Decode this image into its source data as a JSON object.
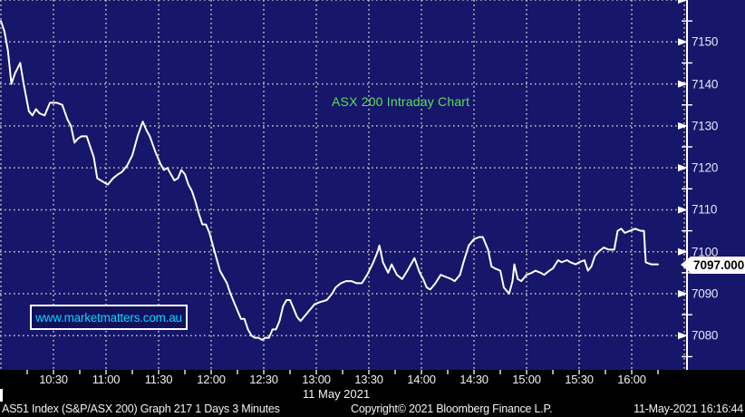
{
  "title": {
    "text": "ASX 200 Intraday Chart",
    "color": "#5ae05a"
  },
  "watermark": {
    "text": "www.marketmatters.com.au",
    "color": "#00d9ff"
  },
  "price_callout": {
    "value": "7097.000"
  },
  "date_label": "11 May 2021",
  "footer": {
    "left": "AS51 Index (S&P/ASX 200) Graph 217 1 Days 3 Minutes",
    "center": "Copyright© 2021 Bloomberg Finance L.P.",
    "right": "11-May-2021 16:16:44"
  },
  "colors": {
    "background": "#16166a",
    "axis_band": "#000000",
    "gridline": "#c8c8be",
    "line": "#ffffff",
    "title_green": "#5ae05a",
    "watermark_cyan": "#00d9ff"
  },
  "chart_data": {
    "type": "line",
    "title": "ASX 200 Intraday Chart",
    "instrument": "AS51 Index (S&P/ASX 200)",
    "interval": "3 Minutes",
    "x_unit": "minutes since 10:00",
    "ylim_visible": [
      7072,
      7160
    ],
    "grid": "dotted",
    "y_axis_side": "right",
    "last_value": 7097.0,
    "day_high": 7155.0,
    "day_low": 7079.0,
    "y_tick_labels": [
      7150,
      7140,
      7130,
      7120,
      7110,
      7100,
      7090,
      7080
    ],
    "y_major_gridlines": [
      7160,
      7150,
      7140,
      7130,
      7120,
      7110,
      7100,
      7090,
      7080
    ],
    "y_minor_ticks": [
      7155,
      7145,
      7135,
      7125,
      7115,
      7105,
      7095,
      7085,
      7075
    ],
    "x_gridline_minutes": [
      0,
      30,
      60,
      90,
      120,
      150,
      180,
      210,
      240,
      270,
      300,
      330,
      360,
      390
    ],
    "x_tick_minutes": [
      15,
      30,
      45,
      60,
      75,
      90,
      105,
      120,
      135,
      150,
      165,
      180,
      195,
      210,
      225,
      240,
      255,
      270,
      285,
      300,
      315,
      330,
      345,
      360,
      375
    ],
    "x_labels": [
      {
        "text": "10:30",
        "minute": 30
      },
      {
        "text": "11:00",
        "minute": 60
      },
      {
        "text": "11:30",
        "minute": 90
      },
      {
        "text": "12:00",
        "minute": 120
      },
      {
        "text": "12:30",
        "minute": 150
      },
      {
        "text": "13:00",
        "minute": 180
      },
      {
        "text": "13:30",
        "minute": 210
      },
      {
        "text": "14:00",
        "minute": 240
      },
      {
        "text": "14:30",
        "minute": 270
      },
      {
        "text": "15:00",
        "minute": 300
      },
      {
        "text": "15:30",
        "minute": 330
      },
      {
        "text": "16:00",
        "minute": 360
      }
    ],
    "series": [
      {
        "name": "AS51 Index intraday price",
        "points": [
          [
            0,
            7155
          ],
          [
            2,
            7152.5
          ],
          [
            4,
            7148
          ],
          [
            6,
            7140
          ],
          [
            8,
            7142.5
          ],
          [
            11,
            7145
          ],
          [
            13,
            7140
          ],
          [
            16,
            7133.5
          ],
          [
            18,
            7132.5
          ],
          [
            20,
            7134
          ],
          [
            22,
            7133
          ],
          [
            25,
            7132.5
          ],
          [
            28,
            7135.5
          ],
          [
            32,
            7135.5
          ],
          [
            35,
            7135
          ],
          [
            38,
            7131.5
          ],
          [
            40,
            7130
          ],
          [
            42,
            7126
          ],
          [
            44,
            7127
          ],
          [
            46,
            7127.5
          ],
          [
            49,
            7127.5
          ],
          [
            51,
            7125
          ],
          [
            53,
            7122.5
          ],
          [
            55,
            7117.5
          ],
          [
            57,
            7117
          ],
          [
            59,
            7116.5
          ],
          [
            61,
            7116
          ],
          [
            64,
            7117.5
          ],
          [
            67,
            7118.5
          ],
          [
            69,
            7119
          ],
          [
            72,
            7120.5
          ],
          [
            75,
            7123
          ],
          [
            78,
            7127.5
          ],
          [
            80,
            7130
          ],
          [
            81,
            7131
          ],
          [
            83,
            7129
          ],
          [
            85,
            7127.5
          ],
          [
            88,
            7124
          ],
          [
            91,
            7121
          ],
          [
            93,
            7119.5
          ],
          [
            95,
            7120
          ],
          [
            97,
            7118.5
          ],
          [
            99,
            7117
          ],
          [
            101,
            7117.5
          ],
          [
            103,
            7119.5
          ],
          [
            105,
            7118.5
          ],
          [
            107,
            7116
          ],
          [
            109,
            7114.5
          ],
          [
            111,
            7112
          ],
          [
            113,
            7109
          ],
          [
            115,
            7106.5
          ],
          [
            117,
            7106.5
          ],
          [
            119,
            7104.5
          ],
          [
            121,
            7101.5
          ],
          [
            123,
            7098.5
          ],
          [
            125,
            7095.5
          ],
          [
            127,
            7094
          ],
          [
            129,
            7092.5
          ],
          [
            131,
            7090
          ],
          [
            133,
            7088
          ],
          [
            135,
            7086
          ],
          [
            137,
            7084
          ],
          [
            139,
            7084
          ],
          [
            141,
            7081.5
          ],
          [
            143,
            7080
          ],
          [
            145,
            7079.5
          ],
          [
            147,
            7079.5
          ],
          [
            149,
            7079
          ],
          [
            151,
            7079.5
          ],
          [
            153,
            7079.5
          ],
          [
            155,
            7081.5
          ],
          [
            157,
            7081.5
          ],
          [
            159,
            7083.5
          ],
          [
            161,
            7087
          ],
          [
            163,
            7088.5
          ],
          [
            165,
            7088.5
          ],
          [
            167,
            7086.5
          ],
          [
            169,
            7084.5
          ],
          [
            171,
            7083.5
          ],
          [
            173,
            7084.5
          ],
          [
            176,
            7086
          ],
          [
            179,
            7087.5
          ],
          [
            182,
            7088
          ],
          [
            186,
            7088.5
          ],
          [
            189,
            7090
          ],
          [
            191,
            7091.5
          ],
          [
            194,
            7092.5
          ],
          [
            197,
            7093
          ],
          [
            200,
            7093
          ],
          [
            203,
            7092.5
          ],
          [
            206,
            7092.5
          ],
          [
            209,
            7094.5
          ],
          [
            212,
            7097
          ],
          [
            215,
            7100
          ],
          [
            216,
            7101.5
          ],
          [
            218,
            7097.5
          ],
          [
            221,
            7095
          ],
          [
            223,
            7097
          ],
          [
            226,
            7094.5
          ],
          [
            229,
            7093.5
          ],
          [
            232,
            7095.5
          ],
          [
            234,
            7097
          ],
          [
            236,
            7098.5
          ],
          [
            239,
            7095
          ],
          [
            241,
            7093.5
          ],
          [
            243,
            7091.5
          ],
          [
            245,
            7091
          ],
          [
            248,
            7092.5
          ],
          [
            251,
            7094.5
          ],
          [
            254,
            7094
          ],
          [
            257,
            7093.5
          ],
          [
            259,
            7093
          ],
          [
            262,
            7094.5
          ],
          [
            264,
            7097.5
          ],
          [
            267,
            7101.5
          ],
          [
            270,
            7103
          ],
          [
            273,
            7103.5
          ],
          [
            275,
            7103.5
          ],
          [
            278,
            7100.5
          ],
          [
            280,
            7096.5
          ],
          [
            282,
            7096
          ],
          [
            285,
            7095.5
          ],
          [
            287,
            7091.5
          ],
          [
            290,
            7090
          ],
          [
            292,
            7093
          ],
          [
            293,
            7097
          ],
          [
            295,
            7093.5
          ],
          [
            297,
            7093
          ],
          [
            300,
            7094.5
          ],
          [
            303,
            7095
          ],
          [
            305,
            7095.5
          ],
          [
            308,
            7095
          ],
          [
            310,
            7094.5
          ],
          [
            313,
            7095.5
          ],
          [
            315,
            7096
          ],
          [
            318,
            7098
          ],
          [
            320,
            7097.5
          ],
          [
            323,
            7098
          ],
          [
            325,
            7097.5
          ],
          [
            328,
            7097
          ],
          [
            330,
            7097.5
          ],
          [
            333,
            7098
          ],
          [
            335,
            7095.5
          ],
          [
            337,
            7096.5
          ],
          [
            339,
            7099
          ],
          [
            341,
            7100
          ],
          [
            344,
            7101
          ],
          [
            347,
            7100.5
          ],
          [
            350,
            7100.5
          ],
          [
            352,
            7105
          ],
          [
            354,
            7105.5
          ],
          [
            356,
            7104.5
          ],
          [
            359,
            7105
          ],
          [
            362,
            7105.5
          ],
          [
            365,
            7105
          ],
          [
            367,
            7105
          ],
          [
            368,
            7097.5
          ],
          [
            371,
            7097
          ],
          [
            375,
            7097
          ]
        ]
      }
    ]
  }
}
